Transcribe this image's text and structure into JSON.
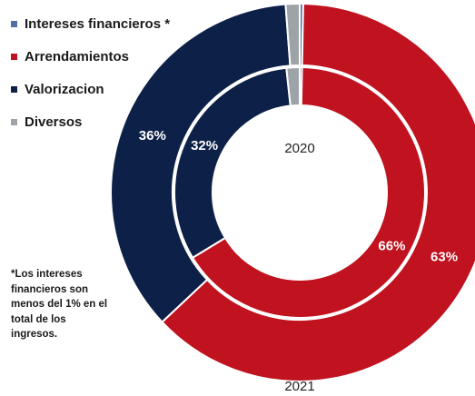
{
  "legend": [
    {
      "label": "Intereses financieros *",
      "color": "#4f6fa8"
    },
    {
      "label": "Arrendamientos",
      "color": "#c0121f"
    },
    {
      "label": "Valorizacion",
      "color": "#0d2047"
    },
    {
      "label": "Diversos",
      "color": "#9ea3a8"
    }
  ],
  "note": "*Los intereses financieros son menos del 1% en el total de los ingresos.",
  "chart_data": {
    "type": "pie",
    "style": "nested-donut",
    "categories": [
      "Intereses financieros *",
      "Arrendamientos",
      "Valorizacion",
      "Diversos"
    ],
    "colors": [
      "#4f6fa8",
      "#c0121f",
      "#0d2047",
      "#9ea3a8"
    ],
    "series": [
      {
        "name": "2021",
        "ring": "outer",
        "values": [
          0.3,
          63,
          36,
          1.2
        ],
        "labels": [
          "",
          "63%",
          "36%",
          ""
        ]
      },
      {
        "name": "2020",
        "ring": "inner",
        "values": [
          0.3,
          66,
          32,
          1.7
        ],
        "labels": [
          "",
          "66%",
          "32%",
          ""
        ]
      }
    ]
  }
}
